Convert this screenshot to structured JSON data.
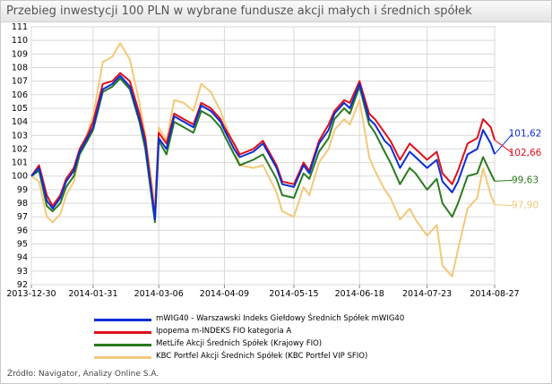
{
  "title": "Przebieg inwestycji 100 PLN w wybrane fundusze akcji małych i średnich spółek",
  "source": "Źródło: Navigator, Analizy Online S.A.",
  "chart_data": {
    "type": "line",
    "title": "Przebieg inwestycji 100 PLN w wybrane fundusze akcji małych i średnich spółek",
    "x_ticks": [
      "2013-12-30",
      "2014-01-31",
      "2014-03-06",
      "2014-04-09",
      "2014-05-15",
      "2014-06-18",
      "2014-07-23",
      "2014-08-27"
    ],
    "y_ticks": [
      "92",
      "93",
      "94",
      "95",
      "96",
      "97",
      "98",
      "99",
      "100",
      "101",
      "102",
      "103",
      "104",
      "105",
      "106",
      "107",
      "108",
      "109",
      "110",
      "111"
    ],
    "ylim": [
      92,
      111
    ],
    "grid": true,
    "legend_position": "bottom",
    "x": [
      "2013-12-30",
      "2014-01-03",
      "2014-01-07",
      "2014-01-10",
      "2014-01-14",
      "2014-01-17",
      "2014-01-21",
      "2014-01-24",
      "2014-01-28",
      "2014-01-31",
      "2014-02-05",
      "2014-02-10",
      "2014-02-14",
      "2014-02-19",
      "2014-02-24",
      "2014-02-27",
      "2014-03-04",
      "2014-03-06",
      "2014-03-10",
      "2014-03-14",
      "2014-03-19",
      "2014-03-24",
      "2014-03-28",
      "2014-04-02",
      "2014-04-07",
      "2014-04-09",
      "2014-04-14",
      "2014-04-17",
      "2014-04-24",
      "2014-04-29",
      "2014-05-06",
      "2014-05-09",
      "2014-05-15",
      "2014-05-20",
      "2014-05-23",
      "2014-05-28",
      "2014-06-02",
      "2014-06-05",
      "2014-06-10",
      "2014-06-13",
      "2014-06-18",
      "2014-06-23",
      "2014-06-26",
      "2014-07-01",
      "2014-07-04",
      "2014-07-09",
      "2014-07-14",
      "2014-07-17",
      "2014-07-23",
      "2014-07-28",
      "2014-07-31",
      "2014-08-05",
      "2014-08-08",
      "2014-08-13",
      "2014-08-18",
      "2014-08-21",
      "2014-08-25",
      "2014-08-27"
    ],
    "series": [
      {
        "name": "mWIG40 - Warszawski Indeks Giełdowy Średnich Spółek mWIG40",
        "color": "#0b2ed6",
        "end_label": "101,62",
        "values": [
          100,
          100.6,
          98.2,
          97.6,
          98.4,
          99.6,
          100.4,
          101.8,
          102.8,
          103.6,
          106.4,
          106.8,
          107.4,
          106.6,
          104.2,
          102.4,
          96.8,
          102.8,
          102.0,
          104.4,
          104.0,
          103.6,
          105.2,
          104.8,
          104.0,
          103.4,
          102.0,
          101.4,
          101.8,
          102.4,
          100.6,
          99.4,
          99.2,
          100.8,
          100.2,
          102.4,
          103.4,
          104.6,
          105.4,
          105.0,
          106.8,
          104.2,
          103.8,
          102.6,
          102.2,
          100.6,
          101.8,
          101.4,
          100.6,
          101.2,
          99.6,
          98.8,
          99.6,
          101.6,
          102.0,
          103.4,
          102.4,
          101.62
        ]
      },
      {
        "name": "Ipopema m-INDEKS FIO kategoria A",
        "color": "#e0101a",
        "end_label": "102,66",
        "values": [
          100,
          100.8,
          98.6,
          97.8,
          98.6,
          99.8,
          100.6,
          102.0,
          103.0,
          104.0,
          106.8,
          107.0,
          107.6,
          107.0,
          104.6,
          102.8,
          97.0,
          103.2,
          102.4,
          104.6,
          104.2,
          103.8,
          105.4,
          105.0,
          104.2,
          103.6,
          102.4,
          101.6,
          102.0,
          102.6,
          100.8,
          99.6,
          99.4,
          101.0,
          100.4,
          102.6,
          103.8,
          104.8,
          105.6,
          105.4,
          107.0,
          104.6,
          104.2,
          103.2,
          102.6,
          101.2,
          102.4,
          102.0,
          101.2,
          101.8,
          100.2,
          99.4,
          100.4,
          102.4,
          102.8,
          104.2,
          103.6,
          102.66
        ]
      },
      {
        "name": "MetLife Akcji Średnich Spółek (Krajowy FIO)",
        "color": "#2a7a1e",
        "end_label": "99,63",
        "values": [
          100,
          100.4,
          97.8,
          97.4,
          98.0,
          99.2,
          100.0,
          101.6,
          102.6,
          103.4,
          106.2,
          106.6,
          107.2,
          106.4,
          104.0,
          102.0,
          96.6,
          102.6,
          101.6,
          104.0,
          103.6,
          103.2,
          104.8,
          104.4,
          103.6,
          103.0,
          101.6,
          100.8,
          101.2,
          101.6,
          99.8,
          98.6,
          98.4,
          100.2,
          99.8,
          101.8,
          102.8,
          104.2,
          105.0,
          104.6,
          106.6,
          103.8,
          103.2,
          101.8,
          101.0,
          99.4,
          100.6,
          100.2,
          99.0,
          99.8,
          98.0,
          97.0,
          98.0,
          100.0,
          100.2,
          101.4,
          100.2,
          99.63
        ]
      },
      {
        "name": "KBC Portfel Akcji Średnich Spółek (KBC Portfel VIP SFIO)",
        "color": "#f3c97a",
        "end_label": "97,90",
        "values": [
          100,
          99.6,
          97.0,
          96.6,
          97.2,
          98.6,
          99.6,
          101.6,
          103.2,
          104.4,
          108.4,
          108.8,
          109.8,
          108.6,
          105.4,
          103.0,
          97.8,
          103.6,
          102.6,
          105.6,
          105.4,
          104.8,
          106.8,
          106.2,
          104.8,
          104.0,
          102.2,
          100.8,
          100.6,
          100.8,
          98.8,
          97.4,
          97.0,
          99.2,
          98.6,
          101.0,
          102.0,
          103.4,
          104.2,
          103.8,
          105.6,
          101.4,
          100.4,
          99.0,
          98.4,
          96.8,
          97.6,
          96.8,
          95.6,
          96.4,
          93.4,
          92.6,
          94.6,
          97.6,
          98.4,
          100.6,
          98.6,
          97.9
        ]
      }
    ]
  }
}
